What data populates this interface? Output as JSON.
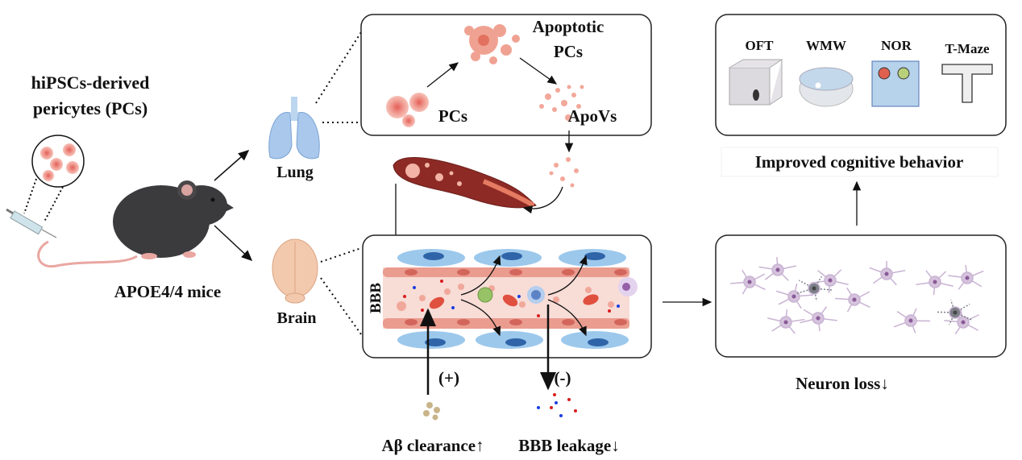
{
  "source": {
    "line1": "hiPSCs-derived",
    "line2": "pericytes (PCs)"
  },
  "mouse_label": "APOE4/4 mice",
  "organs": {
    "lung": "Lung",
    "brain": "Brain"
  },
  "lung_panel": {
    "apoptotic_line1": "Apoptotic",
    "apoptotic_line2": "PCs",
    "pcs": "PCs",
    "apovs": "ApoVs"
  },
  "bbb_panel": {
    "label": "BBB",
    "plus": "(+)",
    "minus": "(-)",
    "abeta": "Aβ clearance↑",
    "leakage": "BBB leakage↓"
  },
  "neuron_panel": {
    "label": "Neuron loss↓"
  },
  "behavior_panel": {
    "tests": [
      "OFT",
      "WMW",
      "NOR",
      "T-Maze"
    ],
    "label": "Improved cognitive behavior"
  },
  "colors": {
    "pericyte": "#e8877d",
    "vessel": "#f6d5cf",
    "endothelial": "#9cc8ec",
    "mouse": "#3b3a3d",
    "neuron": "#c9b3d3"
  }
}
